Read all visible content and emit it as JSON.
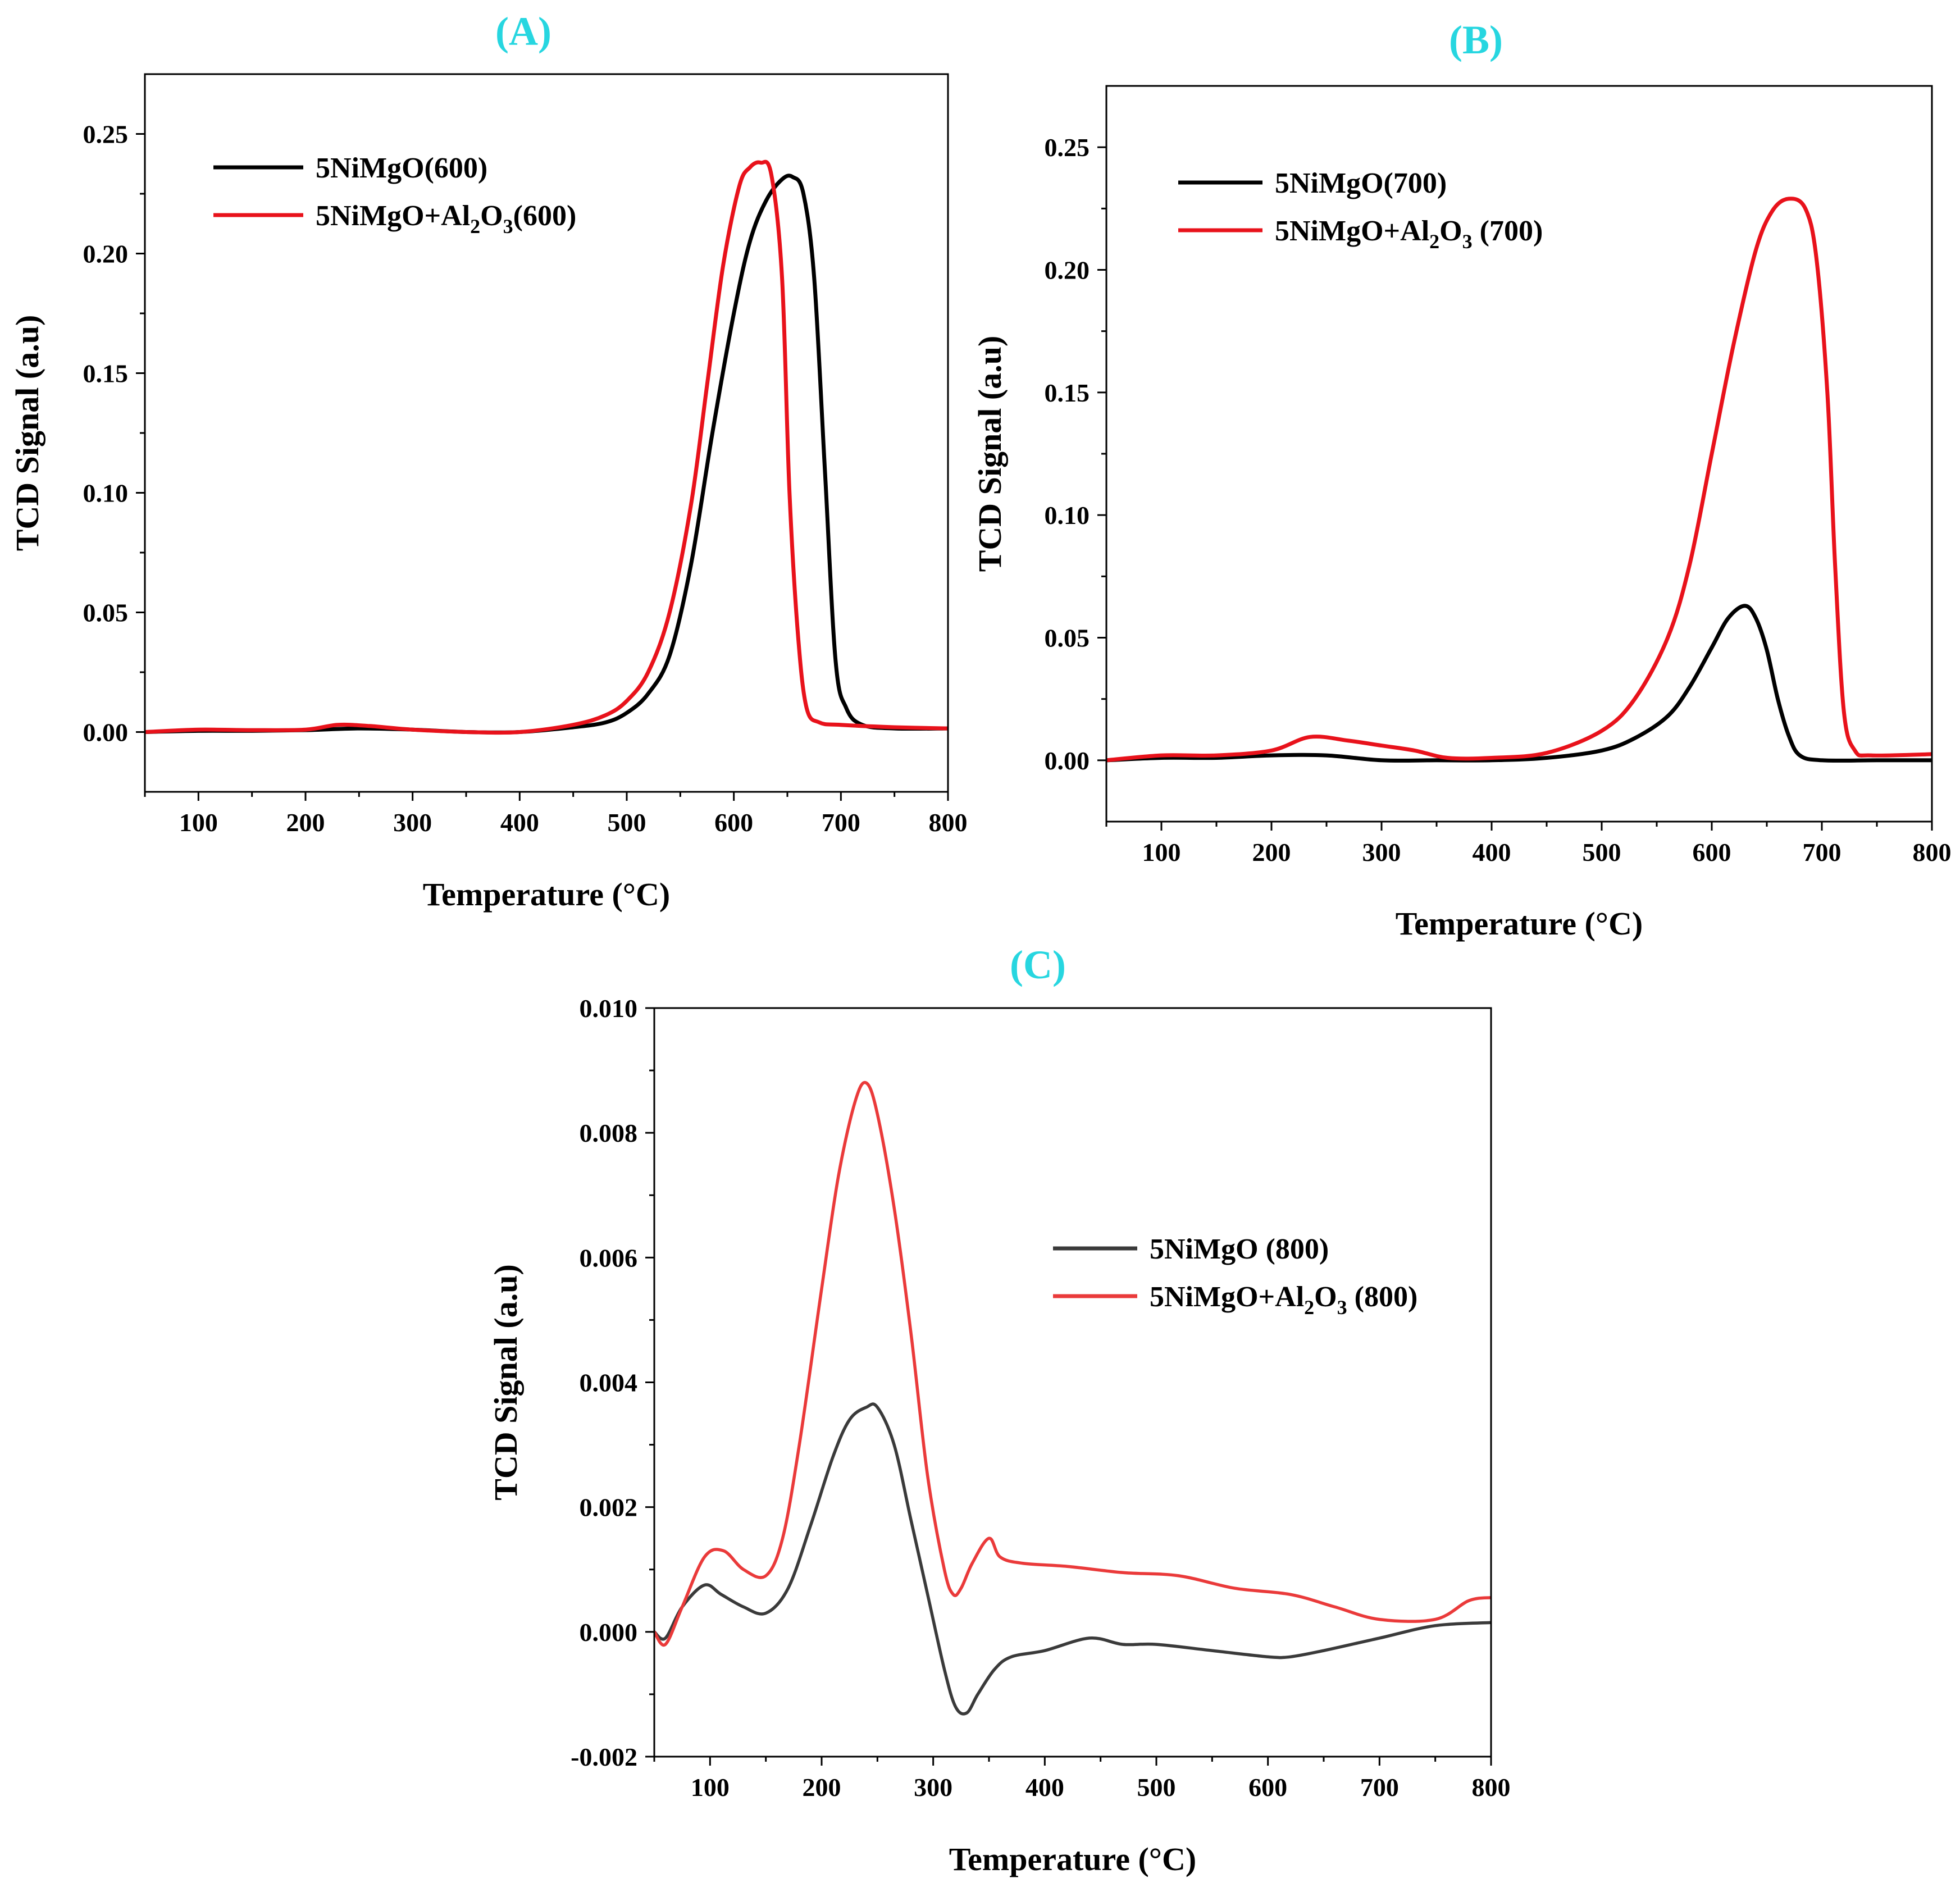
{
  "chart_data": [
    {
      "id": "A",
      "type": "line",
      "title": "(A)",
      "xlabel": "Temperature (°C)",
      "ylabel": "TCD Signal (a.u)",
      "xlim": [
        50,
        800
      ],
      "ylim": [
        -0.025,
        0.275
      ],
      "xticks": [
        100,
        200,
        300,
        400,
        500,
        600,
        700,
        800
      ],
      "xtick_labels": [
        "100",
        "200",
        "300",
        "400",
        "500",
        "600",
        "700",
        "800"
      ],
      "yticks": [
        0.0,
        0.05,
        0.1,
        0.15,
        0.2,
        0.25
      ],
      "ytick_labels": [
        "0.00",
        "0.05",
        "0.10",
        "0.15",
        "0.20",
        "0.25"
      ],
      "legend_position": "top-left",
      "series": [
        {
          "name": "5NiMgO(600)",
          "legend": {
            "base": "5NiMgO(600)"
          },
          "color": "#000000",
          "x": [
            50,
            100,
            150,
            200,
            250,
            300,
            350,
            400,
            450,
            480,
            500,
            520,
            540,
            560,
            580,
            600,
            615,
            630,
            645,
            655,
            665,
            675,
            685,
            695,
            705,
            720,
            750,
            800
          ],
          "y": [
            0.0,
            0.0005,
            0.0005,
            0.0008,
            0.0015,
            0.001,
            0.0,
            0.0,
            0.002,
            0.004,
            0.008,
            0.016,
            0.032,
            0.07,
            0.125,
            0.175,
            0.205,
            0.222,
            0.231,
            0.232,
            0.225,
            0.19,
            0.11,
            0.03,
            0.01,
            0.003,
            0.0015,
            0.0015
          ]
        },
        {
          "name": "5NiMgO+Al2O3(600)",
          "legend": {
            "base": "5NiMgO+Al",
            "sub1": "2",
            "mid": "O",
            "sub2": "3",
            "tail": "(600)"
          },
          "color": "#e8121b",
          "x": [
            50,
            100,
            150,
            200,
            230,
            260,
            300,
            350,
            400,
            450,
            480,
            500,
            520,
            540,
            560,
            575,
            590,
            605,
            615,
            625,
            635,
            645,
            652,
            660,
            668,
            680,
            700,
            750,
            800
          ],
          "y": [
            0.0,
            0.001,
            0.0008,
            0.001,
            0.003,
            0.0025,
            0.001,
            0.0,
            0.0,
            0.003,
            0.007,
            0.013,
            0.025,
            0.05,
            0.095,
            0.145,
            0.195,
            0.228,
            0.236,
            0.238,
            0.233,
            0.19,
            0.1,
            0.04,
            0.01,
            0.004,
            0.003,
            0.002,
            0.0015
          ]
        }
      ]
    },
    {
      "id": "B",
      "type": "line",
      "title": "(B)",
      "xlabel": "Temperature (°C)",
      "ylabel": "TCD Signal (a.u)",
      "xlim": [
        50,
        800
      ],
      "ylim": [
        -0.025,
        0.275
      ],
      "xticks": [
        100,
        200,
        300,
        400,
        500,
        600,
        700,
        800
      ],
      "xtick_labels": [
        "100",
        "200",
        "300",
        "400",
        "500",
        "600",
        "700",
        "800"
      ],
      "yticks": [
        0.0,
        0.05,
        0.1,
        0.15,
        0.2,
        0.25
      ],
      "ytick_labels": [
        "0.00",
        "0.05",
        "0.10",
        "0.15",
        "0.20",
        "0.25"
      ],
      "legend_position": "top-left",
      "series": [
        {
          "name": "5NiMgO(700)",
          "legend": {
            "base": "5NiMgO(700)"
          },
          "color": "#000000",
          "x": [
            50,
            100,
            150,
            200,
            250,
            300,
            350,
            400,
            450,
            500,
            530,
            560,
            580,
            600,
            615,
            630,
            640,
            650,
            660,
            670,
            680,
            700,
            750,
            800
          ],
          "y": [
            0.0,
            0.001,
            0.001,
            0.002,
            0.002,
            0.0,
            0.0,
            0.0,
            0.001,
            0.004,
            0.009,
            0.018,
            0.03,
            0.046,
            0.058,
            0.063,
            0.058,
            0.045,
            0.025,
            0.01,
            0.002,
            0.0,
            0.0,
            0.0
          ]
        },
        {
          "name": "5NiMgO+Al2O3 (700)",
          "legend": {
            "base": "5NiMgO+Al",
            "sub1": "2",
            "mid": "O",
            "sub2": "3",
            "tail": " (700)"
          },
          "color": "#e8121b",
          "x": [
            50,
            100,
            150,
            200,
            235,
            270,
            300,
            330,
            360,
            400,
            450,
            500,
            530,
            560,
            580,
            600,
            620,
            640,
            655,
            670,
            685,
            695,
            705,
            712,
            720,
            730,
            745,
            800
          ],
          "y": [
            0.0,
            0.002,
            0.002,
            0.004,
            0.0095,
            0.008,
            0.006,
            0.004,
            0.001,
            0.001,
            0.003,
            0.012,
            0.025,
            0.05,
            0.08,
            0.125,
            0.17,
            0.208,
            0.224,
            0.229,
            0.225,
            0.205,
            0.15,
            0.08,
            0.02,
            0.004,
            0.002,
            0.0025
          ]
        }
      ]
    },
    {
      "id": "C",
      "type": "line",
      "title": "(C)",
      "xlabel": "Temperature (°C)",
      "ylabel": "TCD Signal (a.u)",
      "xlim": [
        50,
        800
      ],
      "ylim": [
        -0.002,
        0.01
      ],
      "xticks": [
        100,
        200,
        300,
        400,
        500,
        600,
        700,
        800
      ],
      "xtick_labels": [
        "100",
        "200",
        "300",
        "400",
        "500",
        "600",
        "700",
        "800"
      ],
      "yticks": [
        -0.002,
        0.0,
        0.002,
        0.004,
        0.006,
        0.008,
        0.01
      ],
      "ytick_labels": [
        "-0.002",
        "0.000",
        "0.002",
        "0.004",
        "0.006",
        "0.008",
        "0.010"
      ],
      "legend_position": "center-right",
      "series": [
        {
          "name": "5NiMgO  (800)",
          "legend": {
            "base": "5NiMgO  (800)"
          },
          "color": "#3a3a3a",
          "x": [
            50,
            60,
            75,
            95,
            110,
            130,
            150,
            170,
            190,
            210,
            225,
            240,
            250,
            265,
            280,
            295,
            310,
            320,
            330,
            340,
            355,
            370,
            400,
            440,
            470,
            500,
            550,
            600,
            620,
            650,
            700,
            750,
            800
          ],
          "y": [
            0.0,
            -0.0001,
            0.0004,
            0.00075,
            0.0006,
            0.0004,
            0.0003,
            0.0007,
            0.0017,
            0.0028,
            0.0034,
            0.0036,
            0.0036,
            0.003,
            0.0018,
            0.0006,
            -0.0006,
            -0.0012,
            -0.0013,
            -0.001,
            -0.0006,
            -0.0004,
            -0.0003,
            -0.0001,
            -0.0002,
            -0.0002,
            -0.0003,
            -0.0004,
            -0.0004,
            -0.0003,
            -0.0001,
            0.0001,
            0.00015
          ]
        },
        {
          "name": "5NiMgO+Al2O3 (800)",
          "legend": {
            "base": "5NiMgO+Al",
            "sub1": "2",
            "mid": "O",
            "sub2": "3",
            "tail": " (800)"
          },
          "color": "#ea3a3a",
          "x": [
            50,
            60,
            75,
            95,
            112,
            130,
            150,
            165,
            180,
            200,
            215,
            230,
            240,
            250,
            265,
            280,
            295,
            310,
            318,
            325,
            335,
            350,
            360,
            380,
            420,
            470,
            520,
            570,
            620,
            660,
            700,
            750,
            780,
            800
          ],
          "y": [
            0.0,
            -0.0002,
            0.0004,
            0.0012,
            0.0013,
            0.001,
            0.0009,
            0.0015,
            0.003,
            0.0055,
            0.0073,
            0.0085,
            0.0088,
            0.0083,
            0.0068,
            0.0048,
            0.0025,
            0.001,
            0.0006,
            0.0007,
            0.0011,
            0.0015,
            0.0012,
            0.0011,
            0.00105,
            0.00095,
            0.0009,
            0.0007,
            0.0006,
            0.0004,
            0.0002,
            0.0002,
            0.0005,
            0.00055
          ]
        }
      ]
    }
  ],
  "colors": {
    "panel_label": "#27d6e0",
    "frame": "#000000"
  }
}
